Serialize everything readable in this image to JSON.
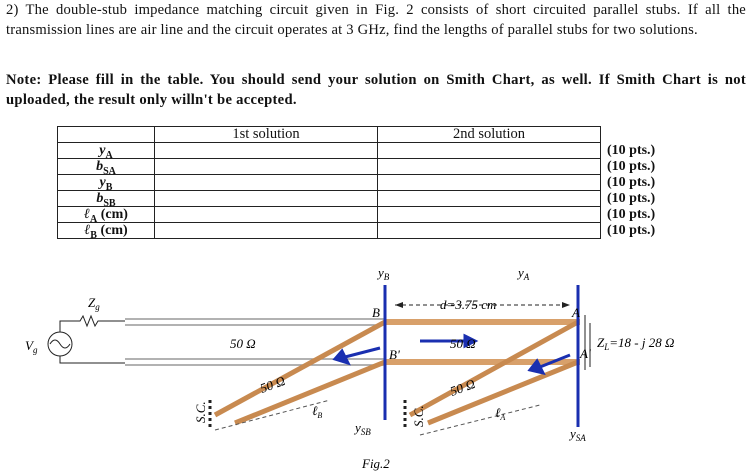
{
  "problem": {
    "number": "2)",
    "text": "The double-stub impedance matching circuit given in Fig. 2 consists of short circuited parallel stubs. If all the transmission lines are air line and the circuit operates at 3 GHz, find the lengths of parallel stubs for two solutions."
  },
  "note": "Note: Please fill in the table. You should send your solution on Smith Chart, as well. If Smith Chart is not uploaded, the result only willn't be accepted.",
  "table": {
    "columns": [
      "1st solution",
      "2nd solution"
    ],
    "rows": [
      {
        "symbol": "y",
        "sub": "A",
        "points": "(10 pts.)"
      },
      {
        "symbol": "b",
        "sub": "SA",
        "points": "(10 pts.)"
      },
      {
        "symbol": "y",
        "sub": "B",
        "points": "(10 pts.)"
      },
      {
        "symbol": "b",
        "sub": "SB",
        "points": "(10 pts.)"
      },
      {
        "symbol": "ℓ",
        "sub": "A",
        "unit": "(cm)",
        "points": "(10 pts.)"
      },
      {
        "symbol": "ℓ",
        "sub": "B",
        "unit": "(cm)",
        "points": "(10 pts.)"
      }
    ]
  },
  "figure": {
    "caption": "Fig.2",
    "labels": {
      "yB": {
        "symbol": "y",
        "sub": "B"
      },
      "yA": {
        "symbol": "y",
        "sub": "A"
      },
      "ySB": {
        "symbol": "y",
        "sub": "SB"
      },
      "ySA": {
        "symbol": "y",
        "sub": "SA"
      },
      "Zg": {
        "symbol": "Z",
        "sub": "g"
      },
      "Vg": {
        "symbol": "V",
        "sub": "g"
      },
      "ZL": {
        "symbol": "Z",
        "sub": "L",
        "rest": "=18 - j 28 Ω"
      },
      "d": "d=3.75 cm",
      "A": "A",
      "B": "B",
      "A2": "A'",
      "B2": "B'",
      "sc1": "S.C.",
      "sc2": "S.C.",
      "lB": {
        "symbol": "ℓ",
        "sub": "B"
      },
      "lA": {
        "symbol": "ℓ",
        "sub": "A"
      },
      "z0": [
        "50 Ω",
        "50 Ω",
        "50 Ω",
        "50 Ω"
      ]
    }
  }
}
